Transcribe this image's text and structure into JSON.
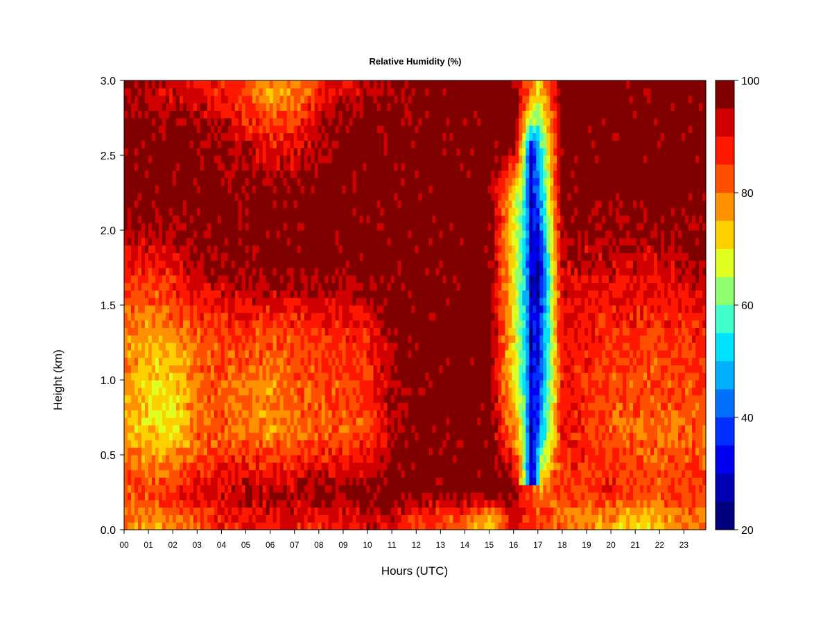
{
  "chart_data": {
    "type": "heatmap",
    "title": "Relative Humidity (%)",
    "xlabel": "Hours (UTC)",
    "ylabel": "Height (km)",
    "x_ticks": [
      "00",
      "01",
      "02",
      "03",
      "04",
      "05",
      "06",
      "07",
      "08",
      "09",
      "10",
      "11",
      "12",
      "13",
      "14",
      "15",
      "16",
      "17",
      "18",
      "19",
      "20",
      "21",
      "22",
      "23"
    ],
    "xlim": [
      0,
      23.9
    ],
    "y_ticks": [
      "0.0",
      "0.5",
      "1.0",
      "1.5",
      "2.0",
      "2.5",
      "3.0"
    ],
    "ylim": [
      0,
      3.0
    ],
    "colorbar": {
      "ticks": [
        "20",
        "40",
        "60",
        "80",
        "100"
      ],
      "range": [
        20,
        100
      ],
      "levels": [
        20,
        25,
        30,
        35,
        40,
        45,
        50,
        55,
        60,
        65,
        70,
        75,
        80,
        85,
        90,
        95,
        100
      ],
      "colors": [
        "#00007f",
        "#0000b4",
        "#0000f0",
        "#0030ff",
        "#0070ff",
        "#00b0ff",
        "#00e0ff",
        "#40ffcc",
        "#90ff70",
        "#e0ff20",
        "#ffd000",
        "#ff9000",
        "#ff5000",
        "#ff1800",
        "#d00000",
        "#800000"
      ]
    },
    "grid": false,
    "description_fields": {
      "dry_column_hours": [
        16.2,
        17.4
      ],
      "dry_column_min_rh": 25
    },
    "profile_rows": [
      {
        "y": 0.05,
        "values": [
          80,
          75,
          78,
          82,
          88,
          90,
          90,
          88,
          88,
          90,
          92,
          92,
          85,
          82,
          80,
          70,
          90,
          85,
          80,
          78,
          75,
          72,
          75,
          80
        ]
      },
      {
        "y": 0.25,
        "values": [
          85,
          85,
          88,
          90,
          92,
          95,
          95,
          95,
          98,
          98,
          98,
          99,
          99,
          99,
          99,
          99,
          99,
          80,
          85,
          85,
          88,
          85,
          85,
          85
        ]
      },
      {
        "y": 0.65,
        "values": [
          75,
          72,
          70,
          80,
          82,
          80,
          78,
          80,
          82,
          82,
          84,
          95,
          99,
          99,
          99,
          99,
          80,
          40,
          90,
          88,
          82,
          82,
          80,
          82
        ]
      },
      {
        "y": 0.95,
        "values": [
          78,
          72,
          70,
          80,
          82,
          80,
          78,
          82,
          84,
          84,
          85,
          95,
          99,
          99,
          99,
          99,
          70,
          35,
          88,
          86,
          84,
          84,
          82,
          84
        ]
      },
      {
        "y": 1.3,
        "values": [
          80,
          75,
          78,
          82,
          85,
          85,
          82,
          84,
          86,
          86,
          88,
          96,
          99,
          99,
          99,
          99,
          72,
          30,
          90,
          88,
          86,
          86,
          85,
          86
        ]
      },
      {
        "y": 1.75,
        "values": [
          88,
          88,
          90,
          94,
          96,
          98,
          99,
          99,
          99,
          99,
          99,
          99,
          99,
          99,
          99,
          99,
          72,
          25,
          94,
          92,
          92,
          92,
          92,
          94
        ]
      },
      {
        "y": 2.2,
        "values": [
          99,
          99,
          99,
          99,
          99,
          99,
          99,
          99,
          99,
          99,
          99,
          99,
          99,
          99,
          99,
          99,
          70,
          40,
          99,
          99,
          99,
          99,
          99,
          99
        ]
      },
      {
        "y": 2.6,
        "values": [
          98,
          99,
          99,
          99,
          96,
          92,
          88,
          90,
          96,
          99,
          99,
          99,
          99,
          99,
          99,
          99,
          99,
          50,
          99,
          99,
          99,
          99,
          99,
          99
        ]
      },
      {
        "y": 2.92,
        "values": [
          96,
          94,
          92,
          90,
          88,
          82,
          76,
          78,
          88,
          92,
          94,
          96,
          98,
          99,
          99,
          99,
          99,
          70,
          99,
          99,
          99,
          99,
          99,
          99
        ]
      }
    ]
  }
}
